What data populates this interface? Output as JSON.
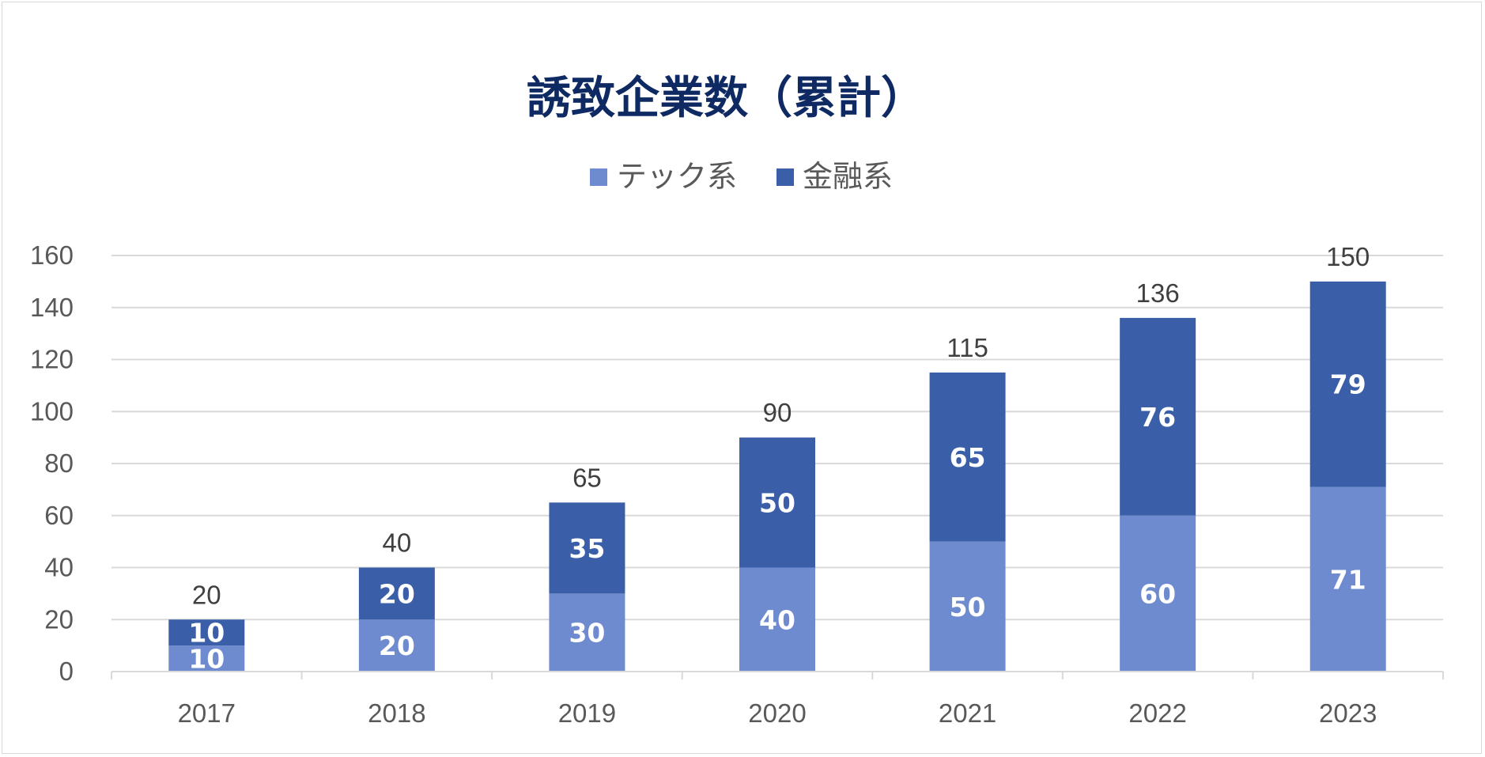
{
  "chart_data": {
    "type": "bar",
    "stacked": true,
    "title": "誘致企業数（累計）",
    "categories": [
      "2017",
      "2018",
      "2019",
      "2020",
      "2021",
      "2022",
      "2023"
    ],
    "series": [
      {
        "name": "テック系",
        "color": "#6f8bcf",
        "values": [
          10,
          20,
          30,
          40,
          50,
          60,
          71
        ]
      },
      {
        "name": "金融系",
        "color": "#3a5fa8",
        "values": [
          10,
          20,
          35,
          50,
          65,
          76,
          79
        ]
      }
    ],
    "totals": [
      20,
      40,
      65,
      90,
      115,
      136,
      150
    ],
    "ylim": [
      0,
      160
    ],
    "yticks": [
      0,
      20,
      40,
      60,
      80,
      100,
      120,
      140,
      160
    ],
    "grid": true,
    "legend_position": "top-center",
    "data_labels": true
  }
}
